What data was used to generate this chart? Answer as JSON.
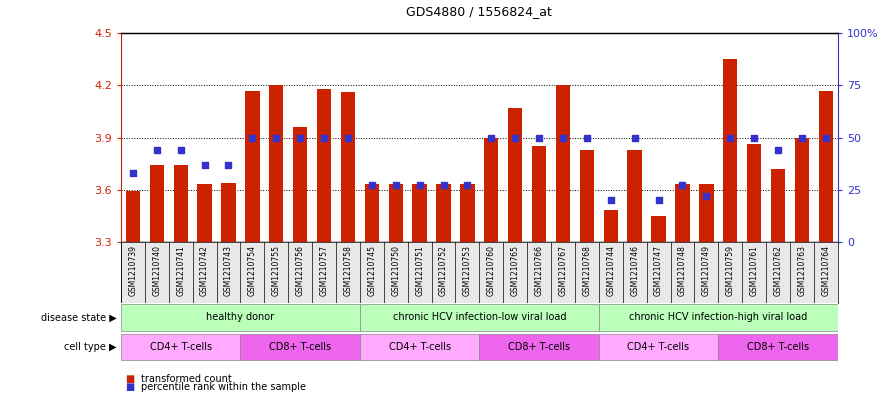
{
  "title": "GDS4880 / 1556824_at",
  "samples": [
    "GSM1210739",
    "GSM1210740",
    "GSM1210741",
    "GSM1210742",
    "GSM1210743",
    "GSM1210754",
    "GSM1210755",
    "GSM1210756",
    "GSM1210757",
    "GSM1210758",
    "GSM1210745",
    "GSM1210750",
    "GSM1210751",
    "GSM1210752",
    "GSM1210753",
    "GSM1210760",
    "GSM1210765",
    "GSM1210766",
    "GSM1210767",
    "GSM1210768",
    "GSM1210744",
    "GSM1210746",
    "GSM1210747",
    "GSM1210748",
    "GSM1210749",
    "GSM1210759",
    "GSM1210761",
    "GSM1210762",
    "GSM1210763",
    "GSM1210764"
  ],
  "bar_values": [
    3.59,
    3.74,
    3.74,
    3.63,
    3.64,
    4.17,
    4.2,
    3.96,
    4.18,
    4.16,
    3.63,
    3.63,
    3.63,
    3.63,
    3.63,
    3.9,
    4.07,
    3.85,
    4.2,
    3.83,
    3.48,
    3.83,
    3.45,
    3.63,
    3.63,
    4.35,
    3.86,
    3.72,
    3.9,
    4.17
  ],
  "percentile_values": [
    33,
    44,
    44,
    37,
    37,
    50,
    50,
    50,
    50,
    50,
    27,
    27,
    27,
    27,
    27,
    50,
    50,
    50,
    50,
    50,
    20,
    50,
    20,
    27,
    22,
    50,
    50,
    44,
    50,
    50
  ],
  "ylim_left": [
    3.3,
    4.5
  ],
  "ylim_right": [
    0,
    100
  ],
  "yticks_left": [
    3.3,
    3.6,
    3.9,
    4.2,
    4.5
  ],
  "yticks_right": [
    0,
    25,
    50,
    75,
    100
  ],
  "ytick_labels_right": [
    "0",
    "25",
    "50",
    "75",
    "100%"
  ],
  "bar_color": "#cc2200",
  "percentile_color": "#3333cc",
  "disease_state_groups": [
    {
      "label": "healthy donor",
      "start": 0,
      "end": 9,
      "color": "#bbffbb"
    },
    {
      "label": "chronic HCV infection-low viral load",
      "start": 10,
      "end": 19,
      "color": "#bbffbb"
    },
    {
      "label": "chronic HCV infection-high viral load",
      "start": 20,
      "end": 29,
      "color": "#bbffbb"
    }
  ],
  "cell_type_groups": [
    {
      "label": "CD4+ T-cells",
      "start": 0,
      "end": 4,
      "color": "#ffaaff"
    },
    {
      "label": "CD8+ T-cells",
      "start": 5,
      "end": 9,
      "color": "#ee66ee"
    },
    {
      "label": "CD4+ T-cells",
      "start": 10,
      "end": 14,
      "color": "#ffaaff"
    },
    {
      "label": "CD8+ T-cells",
      "start": 15,
      "end": 19,
      "color": "#ee66ee"
    },
    {
      "label": "CD4+ T-cells",
      "start": 20,
      "end": 24,
      "color": "#ffaaff"
    },
    {
      "label": "CD8+ T-cells",
      "start": 25,
      "end": 29,
      "color": "#ee66ee"
    }
  ]
}
